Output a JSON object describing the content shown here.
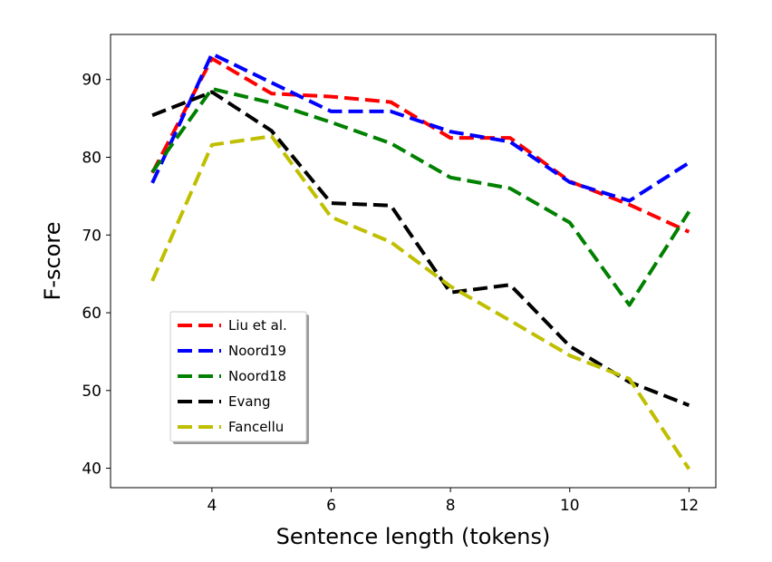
{
  "chart_data": {
    "type": "line",
    "xlabel": "Sentence length (tokens)",
    "ylabel": "F-score",
    "xlim": [
      2.3,
      12.45
    ],
    "ylim": [
      37.5,
      95.8
    ],
    "xticks": [
      4,
      6,
      8,
      10,
      12
    ],
    "yticks": [
      40,
      50,
      60,
      70,
      80,
      90
    ],
    "grid": false,
    "legend_position": "lower-left",
    "x": [
      3,
      4,
      5,
      6,
      7,
      8,
      9,
      10,
      11,
      12
    ],
    "series": [
      {
        "name": "Liu et al.",
        "color": "#ff0000",
        "values": [
          78.0,
          92.7,
          88.2,
          87.8,
          87.1,
          82.5,
          82.5,
          76.9,
          73.9,
          70.4
        ]
      },
      {
        "name": "Noord19",
        "color": "#0000ff",
        "values": [
          76.7,
          93.3,
          89.6,
          85.9,
          85.9,
          83.3,
          82.0,
          76.8,
          74.4,
          79.3
        ]
      },
      {
        "name": "Noord18",
        "color": "#008000",
        "values": [
          78.1,
          88.8,
          87.0,
          84.5,
          81.8,
          77.4,
          76.0,
          71.6,
          61.0,
          73.0
        ]
      },
      {
        "name": "Evang",
        "color": "#000000",
        "values": [
          85.4,
          88.4,
          83.4,
          74.1,
          73.8,
          62.6,
          63.6,
          55.7,
          51.1,
          48.1
        ]
      },
      {
        "name": "Fancellu",
        "color": "#bfbf00",
        "values": [
          64.1,
          81.6,
          82.7,
          72.3,
          69.1,
          63.4,
          59.0,
          54.5,
          51.5,
          39.9
        ]
      }
    ]
  }
}
